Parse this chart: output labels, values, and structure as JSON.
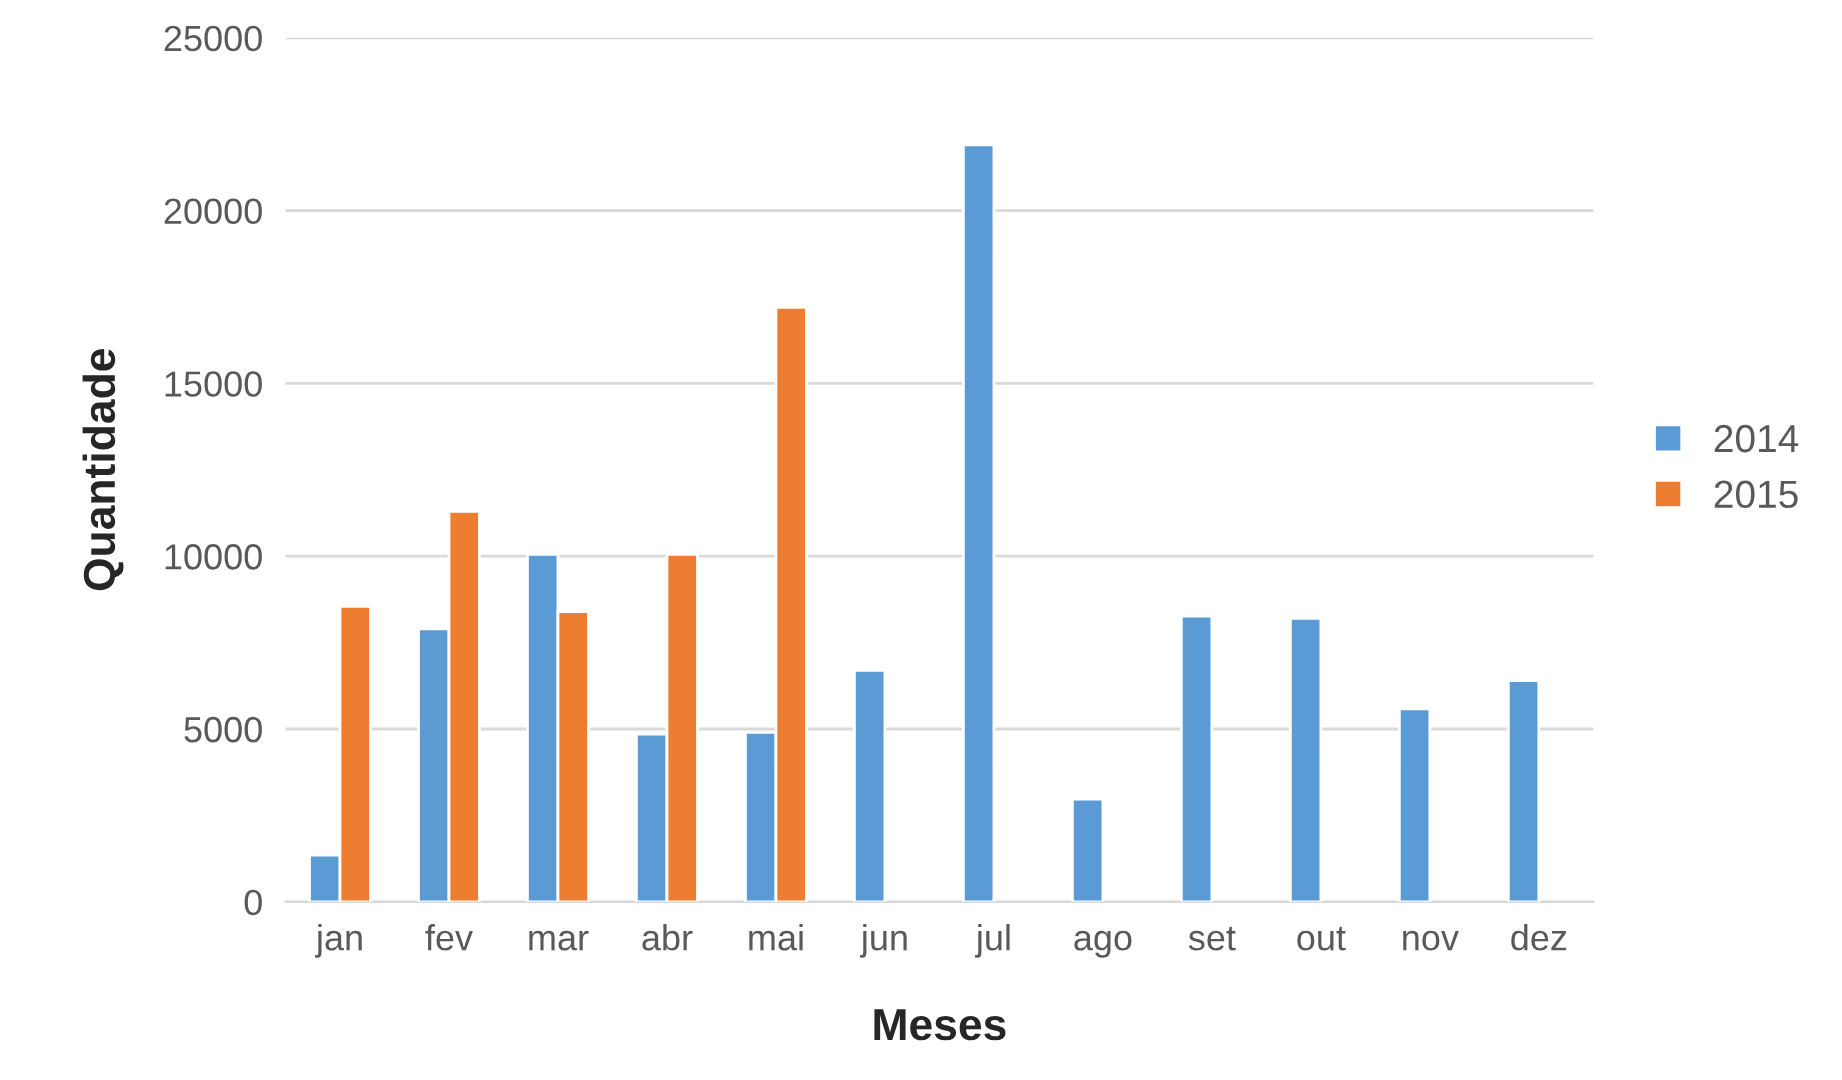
{
  "chart_data": {
    "type": "bar",
    "xlabel": "Meses",
    "ylabel": "Quantidade",
    "categories": [
      "jan",
      "fev",
      "mar",
      "abr",
      "mai",
      "jun",
      "jul",
      "ago",
      "set",
      "out",
      "nov",
      "dez"
    ],
    "series": [
      {
        "name": "2014",
        "color": "#5b9bd5",
        "values": [
          1350,
          7900,
          10050,
          4850,
          4900,
          6700,
          21900,
          2970,
          8270,
          8200,
          5580,
          6400
        ]
      },
      {
        "name": "2015",
        "color": "#ed7d31",
        "values": [
          8550,
          11300,
          8400,
          10050,
          17200,
          null,
          null,
          null,
          null,
          null,
          null,
          null
        ]
      }
    ],
    "ylim": [
      0,
      25000
    ],
    "yticks": [
      0,
      5000,
      10000,
      15000,
      20000,
      25000
    ],
    "grid": "y",
    "legend": "right"
  }
}
